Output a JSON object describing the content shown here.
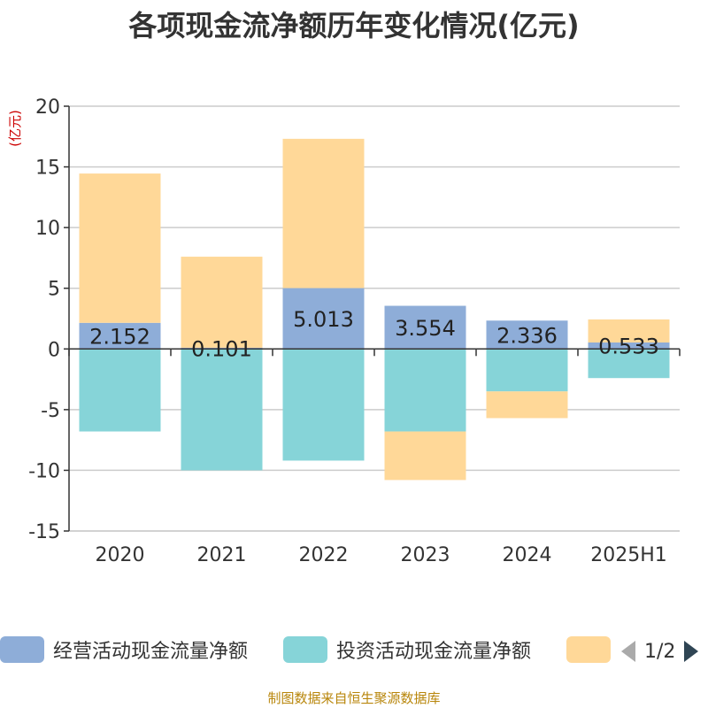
{
  "chart_data": {
    "type": "bar",
    "stacked": true,
    "title": "各项现金流净额历年变化情况(亿元)",
    "ylabel": "(亿元)",
    "xlabel": "",
    "categories": [
      "2020",
      "2021",
      "2022",
      "2023",
      "2024",
      "2025H1"
    ],
    "ylim": [
      -15,
      20
    ],
    "yticks": [
      20,
      15,
      10,
      5,
      0,
      -5,
      -10,
      -15
    ],
    "grid": true,
    "legend_position": "bottom",
    "series": [
      {
        "name": "经营活动现金流量净额",
        "color": "#8eadd8",
        "values": [
          2.152,
          0.101,
          5.013,
          3.554,
          2.336,
          0.533
        ],
        "labels": [
          "2.152",
          "0.101",
          "5.013",
          "3.554",
          "2.336",
          "0.533"
        ]
      },
      {
        "name": "投资活动现金流量净额",
        "color": "#86d4d8",
        "values": [
          -6.8,
          -10.0,
          -9.2,
          -6.8,
          -3.5,
          -2.4
        ]
      },
      {
        "name": "",
        "color": "#ffd898",
        "values": [
          12.3,
          7.5,
          12.3,
          -4.0,
          -2.2,
          1.9
        ]
      }
    ]
  },
  "legend": {
    "page_text": "1/2"
  },
  "source": "制图数据来自恒生聚源数据库"
}
